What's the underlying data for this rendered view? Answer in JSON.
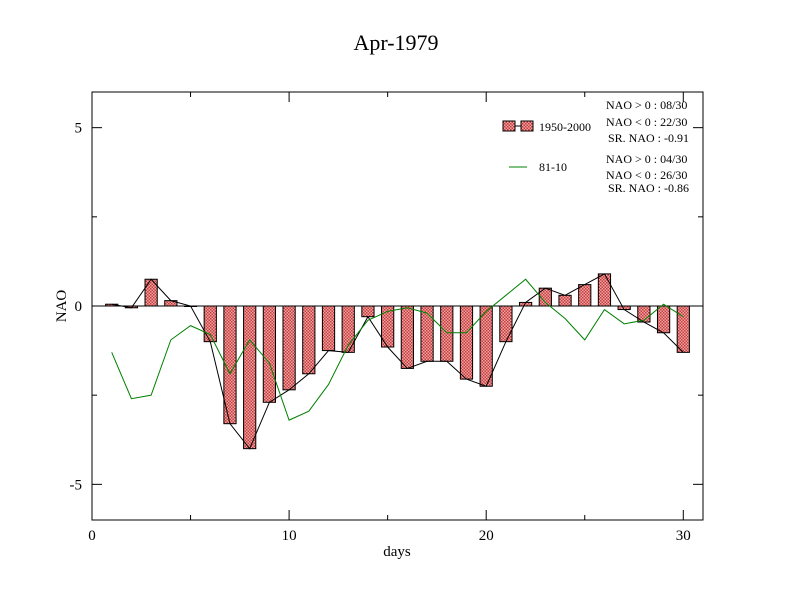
{
  "chart_data": {
    "type": "bar",
    "title": "Apr-1979",
    "xlabel": "days",
    "ylabel": "NAO",
    "xlim": [
      0,
      31
    ],
    "ylim": [
      -6,
      6
    ],
    "x_ticks": [
      0,
      10,
      20,
      30
    ],
    "y_ticks": [
      -5,
      0,
      5
    ],
    "legend_position": "top-right",
    "colors": {
      "bar_fill": "#f4a0a0",
      "bar_pattern": "#c04040",
      "line_1950": "#000000",
      "line_8110": "#008000"
    },
    "days": [
      1,
      2,
      3,
      4,
      5,
      6,
      7,
      8,
      9,
      10,
      11,
      12,
      13,
      14,
      15,
      16,
      17,
      18,
      19,
      20,
      21,
      22,
      23,
      24,
      25,
      26,
      27,
      28,
      29,
      30
    ],
    "series": [
      {
        "name": "1950-2000",
        "style": "bars+line",
        "values": [
          0.05,
          -0.05,
          0.75,
          0.15,
          0.0,
          -1.0,
          -3.3,
          -4.0,
          -2.7,
          -2.35,
          -1.9,
          -1.25,
          -1.3,
          -0.3,
          -1.15,
          -1.75,
          -1.55,
          -1.55,
          -2.05,
          -2.25,
          -1.0,
          0.1,
          0.5,
          0.3,
          0.6,
          0.9,
          -0.1,
          -0.45,
          -0.75,
          -1.3
        ]
      },
      {
        "name": "81-10",
        "style": "line",
        "values": [
          -1.3,
          -2.6,
          -2.5,
          -0.95,
          -0.55,
          -0.8,
          -1.9,
          -0.95,
          -1.6,
          -3.2,
          -2.95,
          -2.2,
          -1.1,
          -0.4,
          -0.15,
          -0.05,
          -0.2,
          -0.75,
          -0.75,
          -0.15,
          0.3,
          0.75,
          0.1,
          -0.35,
          -0.95,
          -0.1,
          -0.5,
          -0.4,
          0.05,
          -0.3
        ]
      }
    ],
    "stats": [
      {
        "series": "1950-2000",
        "lines": [
          "NAO > 0 : 08/30",
          "NAO < 0 : 22/30",
          "SR. NAO : -0.91"
        ]
      },
      {
        "series": "81-10",
        "lines": [
          "NAO > 0 : 04/30",
          "NAO < 0 : 26/30",
          "SR. NAO : -0.86"
        ]
      }
    ]
  }
}
